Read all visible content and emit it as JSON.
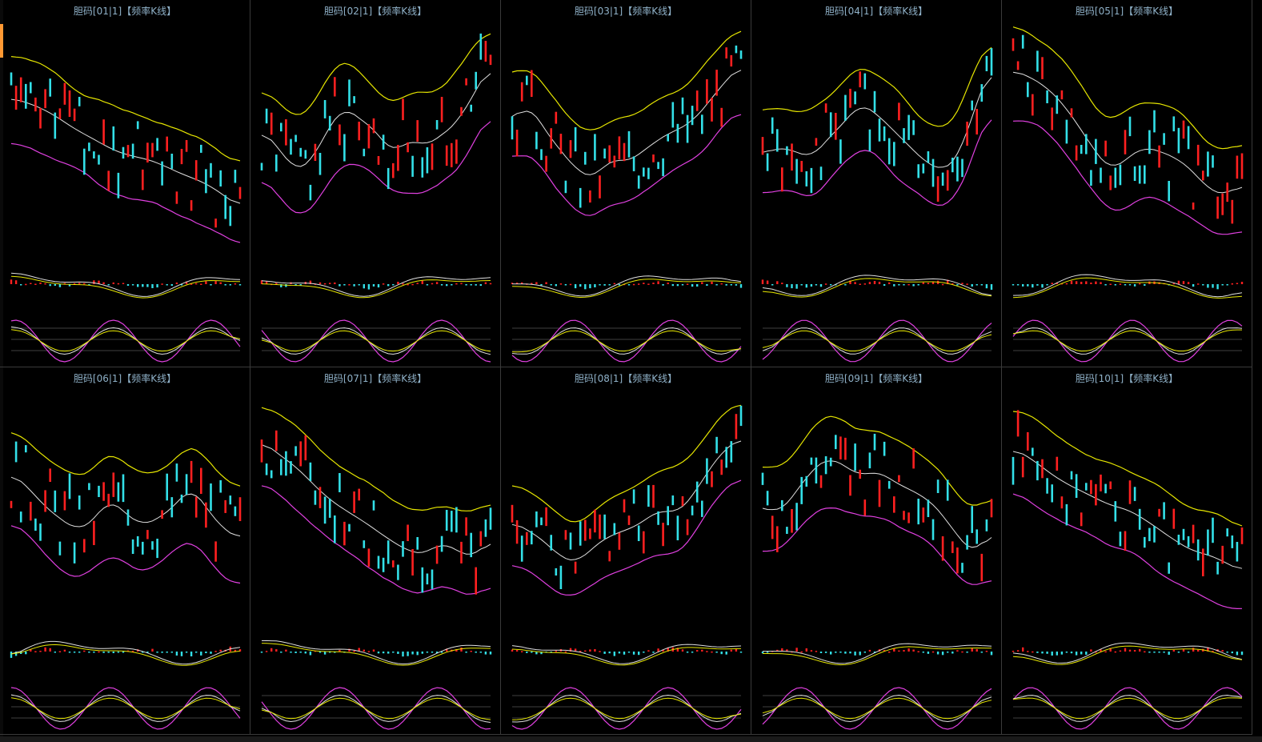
{
  "colors": {
    "background": "#000000",
    "up": "#ff2020",
    "down": "#33e0e8",
    "upper_band": "#e6e600",
    "middle_band": "#e0e0e0",
    "lower_band": "#e040e0",
    "guide": "#555555"
  },
  "chart_data": [
    {
      "type": "candlestick",
      "title": "胆码[01|1]【频率K线】",
      "trend": [
        0.75,
        0.72,
        0.68,
        0.62,
        0.55,
        0.5,
        0.44,
        0.4,
        0.38,
        0.35,
        0.3,
        0.26,
        0.22,
        0.15,
        0.08
      ],
      "band_width": 0.3,
      "seed": 1
    },
    {
      "type": "candlestick",
      "title": "胆码[02|1]【频率K线】",
      "trend": [
        0.55,
        0.45,
        0.3,
        0.35,
        0.55,
        0.7,
        0.62,
        0.55,
        0.4,
        0.5,
        0.45,
        0.52,
        0.6,
        0.78,
        0.95
      ],
      "band_width": 0.35,
      "seed": 2
    },
    {
      "type": "candlestick",
      "title": "胆码[03|1]【频率K线】",
      "trend": [
        0.6,
        0.72,
        0.55,
        0.42,
        0.3,
        0.25,
        0.38,
        0.35,
        0.42,
        0.5,
        0.55,
        0.6,
        0.72,
        0.85,
        0.95
      ],
      "band_width": 0.3,
      "seed": 3
    },
    {
      "type": "candlestick",
      "title": "胆码[04|1]【频率K线】",
      "trend": [
        0.4,
        0.45,
        0.42,
        0.38,
        0.5,
        0.6,
        0.72,
        0.65,
        0.55,
        0.45,
        0.35,
        0.3,
        0.38,
        0.7,
        0.95
      ],
      "band_width": 0.3,
      "seed": 4
    },
    {
      "type": "candlestick",
      "title": "胆码[05|1]【频率K线】",
      "trend": [
        0.92,
        0.88,
        0.82,
        0.72,
        0.58,
        0.42,
        0.3,
        0.38,
        0.45,
        0.42,
        0.38,
        0.3,
        0.18,
        0.15,
        0.22
      ],
      "band_width": 0.32,
      "seed": 5
    },
    {
      "type": "candlestick",
      "title": "胆码[06|1]【频率K线】",
      "trend": [
        0.7,
        0.62,
        0.5,
        0.42,
        0.35,
        0.4,
        0.55,
        0.45,
        0.38,
        0.42,
        0.5,
        0.62,
        0.48,
        0.35,
        0.3
      ],
      "band_width": 0.35,
      "seed": 6
    },
    {
      "type": "candlestick",
      "title": "胆码[07|1]【频率K线】",
      "trend": [
        0.9,
        0.82,
        0.75,
        0.65,
        0.55,
        0.48,
        0.42,
        0.35,
        0.28,
        0.22,
        0.2,
        0.28,
        0.22,
        0.18,
        0.3
      ],
      "band_width": 0.3,
      "seed": 7
    },
    {
      "type": "candlestick",
      "title": "胆码[08|1]【频率K线】",
      "trend": [
        0.4,
        0.35,
        0.28,
        0.18,
        0.15,
        0.25,
        0.32,
        0.35,
        0.4,
        0.48,
        0.45,
        0.55,
        0.72,
        0.85,
        0.92
      ],
      "band_width": 0.28,
      "seed": 8
    },
    {
      "type": "candlestick",
      "title": "胆码[09|1]【频率K线】",
      "trend": [
        0.5,
        0.45,
        0.58,
        0.72,
        0.8,
        0.75,
        0.68,
        0.72,
        0.65,
        0.6,
        0.55,
        0.45,
        0.3,
        0.2,
        0.35
      ],
      "band_width": 0.3,
      "seed": 9
    },
    {
      "type": "candlestick",
      "title": "胆码[10|1]【频率K线】",
      "trend": [
        0.85,
        0.8,
        0.72,
        0.65,
        0.6,
        0.55,
        0.5,
        0.48,
        0.42,
        0.35,
        0.28,
        0.22,
        0.2,
        0.15,
        0.1
      ],
      "band_width": 0.3,
      "seed": 10
    }
  ]
}
